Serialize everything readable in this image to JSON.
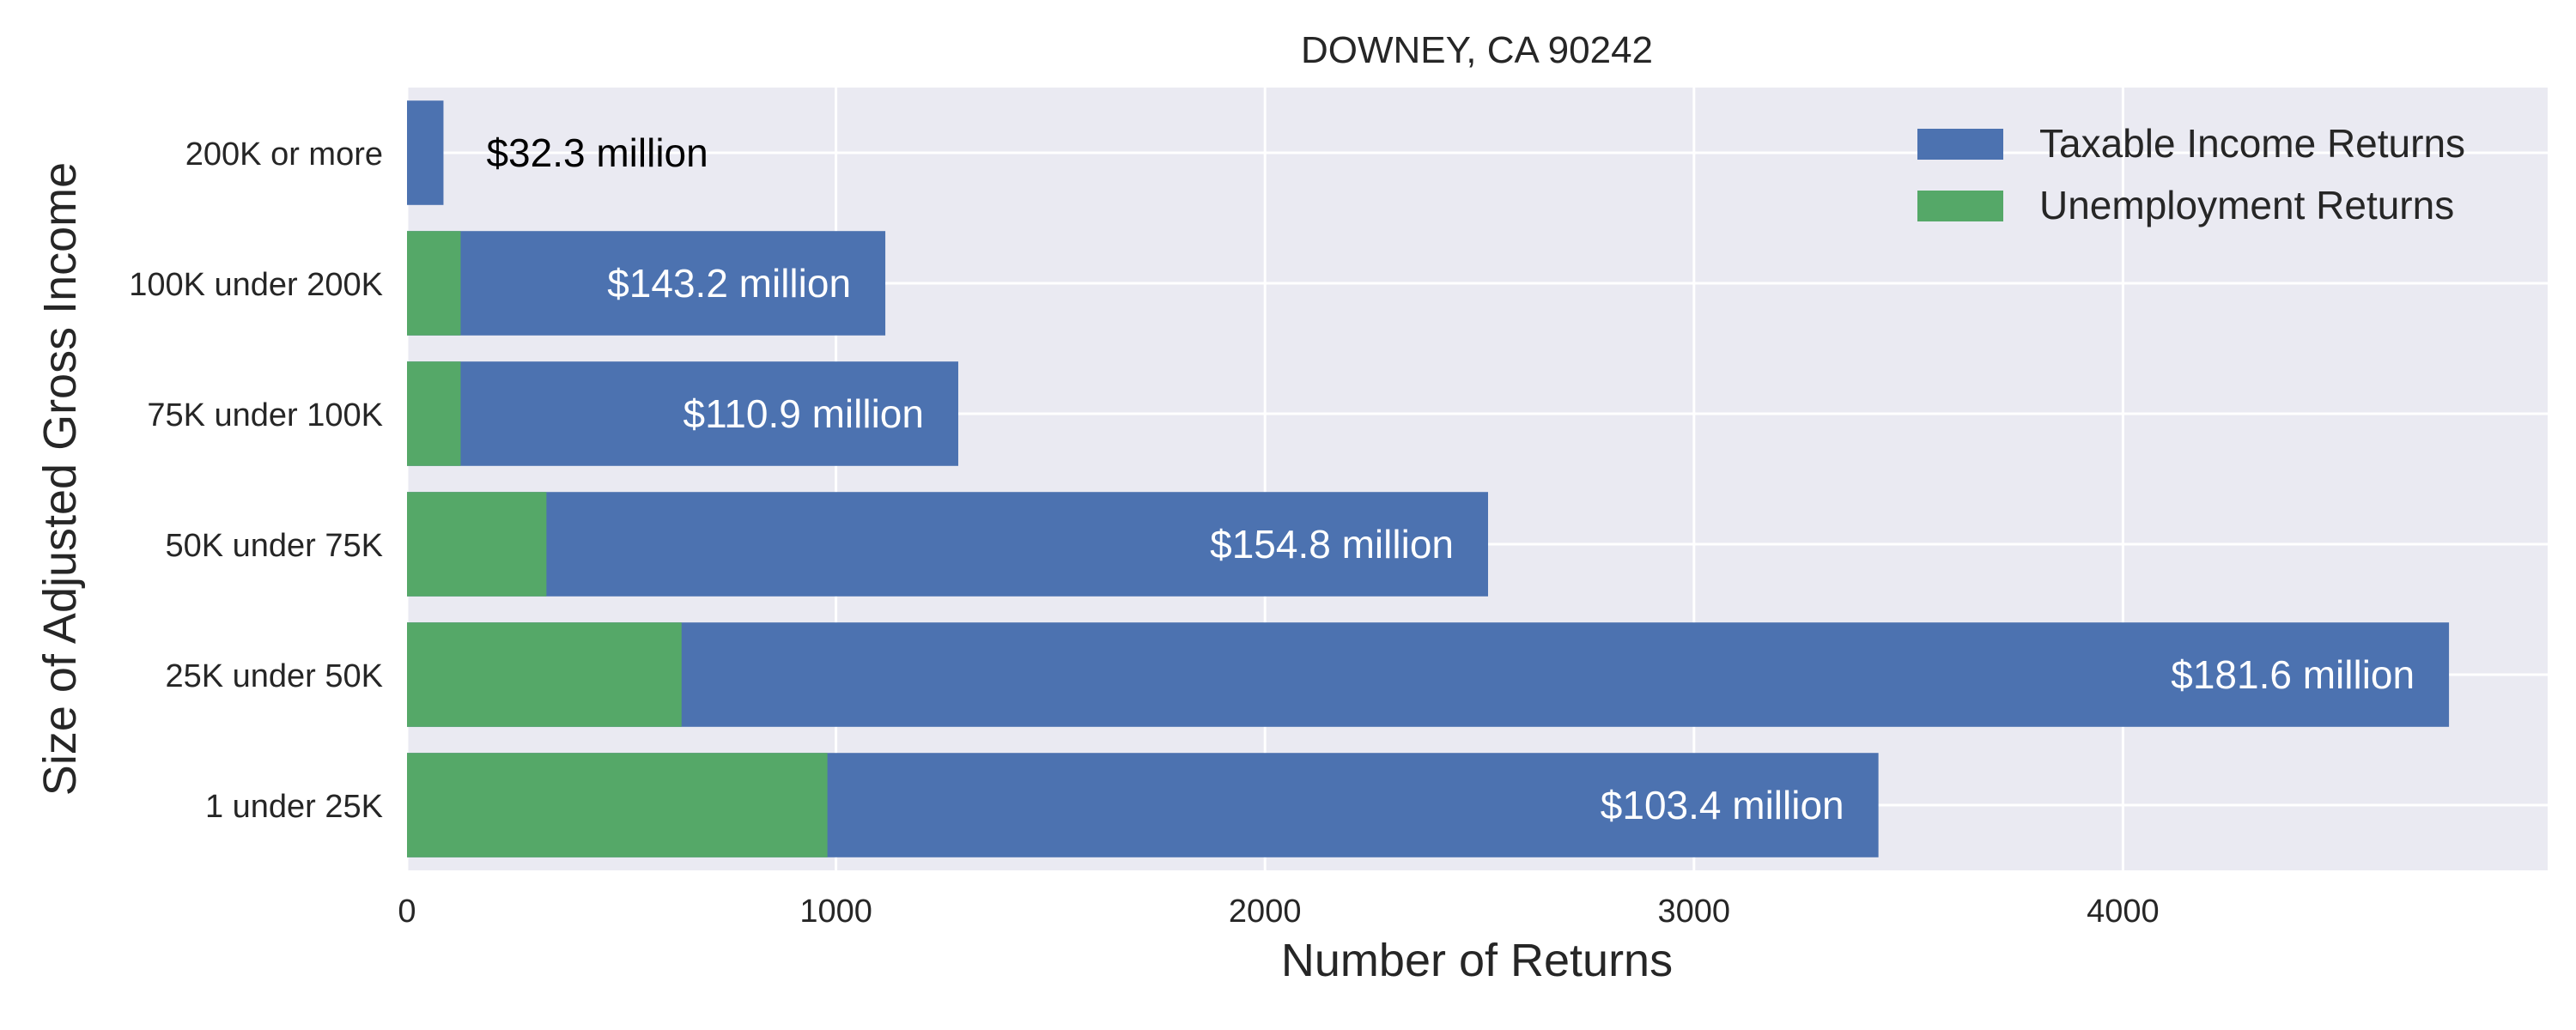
{
  "chart_data": {
    "type": "bar",
    "orientation": "horizontal",
    "stacked": false,
    "title": "DOWNEY, CA 90242",
    "xlabel": "Number of Returns",
    "ylabel": "Size of Adjusted Gross Income",
    "categories": [
      "1 under 25K",
      "25K under 50K",
      "50K under 75K",
      "75K under 100K",
      "100K under 200K",
      "200K or more"
    ],
    "series": [
      {
        "name": "Taxable Income Returns",
        "color": "#4c72b0",
        "values": [
          3430,
          4760,
          2520,
          1285,
          1115,
          85
        ]
      },
      {
        "name": "Unemployment Returns",
        "color": "#55a868",
        "values": [
          980,
          640,
          325,
          125,
          125,
          0
        ]
      }
    ],
    "bar_labels": [
      "$103.4 million",
      "$181.6 million",
      "$154.8 million",
      "$110.9 million",
      "$143.2 million",
      "$32.3 million"
    ],
    "xlim": [
      0,
      4990
    ],
    "xticks": [
      0,
      1000,
      2000,
      3000,
      4000
    ],
    "grid": true,
    "legend_position": "top-right",
    "colors": {
      "plot_background": "#eaeaf2",
      "grid": "#ffffff",
      "label_inside": "#ffffff",
      "label_outside": "#000000"
    }
  }
}
